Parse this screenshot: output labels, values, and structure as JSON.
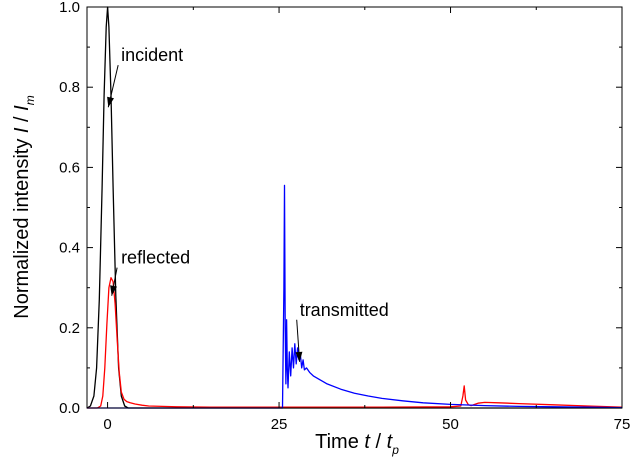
{
  "chart_data": {
    "type": "line",
    "xlabel": {
      "prefix": "Time ",
      "var": "t",
      "sep": " / ",
      "var2": "t",
      "sub": "p"
    },
    "ylabel": {
      "prefix": "Normalized intensity ",
      "var": "I",
      "sep": " / ",
      "var2": "I",
      "sub": "m"
    },
    "xlim": [
      -3,
      75
    ],
    "ylim": [
      0,
      1.0
    ],
    "xticks": [
      {
        "value": 0,
        "label": "0"
      },
      {
        "value": 25,
        "label": "25"
      },
      {
        "value": 50,
        "label": "50"
      },
      {
        "value": 75,
        "label": "75"
      }
    ],
    "yticks": [
      {
        "value": 0.0,
        "label": "0.0"
      },
      {
        "value": 0.2,
        "label": "0.2"
      },
      {
        "value": 0.4,
        "label": "0.4"
      },
      {
        "value": 0.6,
        "label": "0.6"
      },
      {
        "value": 0.8,
        "label": "0.8"
      },
      {
        "value": 1.0,
        "label": "1.0"
      }
    ],
    "grid": false,
    "legend": "none",
    "series": [
      {
        "color": "#000000",
        "x": [
          -3,
          -2.5,
          -2,
          -1.6,
          -1.2,
          -0.8,
          -0.5,
          -0.2,
          0,
          0.2,
          0.5,
          0.8,
          1.2,
          1.6,
          2,
          2.5,
          3,
          4,
          8,
          20,
          50,
          75
        ],
        "y": [
          0,
          0.005,
          0.03,
          0.1,
          0.27,
          0.55,
          0.78,
          0.95,
          1.0,
          0.95,
          0.78,
          0.55,
          0.28,
          0.1,
          0.03,
          0.005,
          0,
          0,
          0,
          0,
          0,
          0
        ]
      },
      {
        "color": "#ff0000",
        "x": [
          -3,
          -1.5,
          -1,
          -0.7,
          -0.4,
          -0.1,
          0.2,
          0.5,
          0.8,
          1.1,
          1.4,
          1.7,
          2,
          2.4,
          2.8,
          3.3,
          4,
          5,
          6,
          8,
          10,
          15,
          20,
          25,
          30,
          40,
          50,
          51.5,
          51.8,
          52,
          52.2,
          52.6,
          53,
          54,
          55,
          57,
          60,
          65,
          70,
          75
        ],
        "y": [
          0,
          0,
          0.005,
          0.03,
          0.1,
          0.21,
          0.3,
          0.325,
          0.315,
          0.26,
          0.17,
          0.09,
          0.04,
          0.022,
          0.016,
          0.013,
          0.01,
          0.007,
          0.005,
          0.004,
          0.003,
          0.002,
          0.002,
          0.002,
          0.002,
          0.002,
          0.003,
          0.005,
          0.03,
          0.055,
          0.02,
          0.008,
          0.006,
          0.012,
          0.014,
          0.013,
          0.011,
          0.008,
          0.005,
          0.002
        ]
      },
      {
        "color": "#0000ff",
        "x": [
          -3,
          25.5,
          25.7,
          25.8,
          25.9,
          26,
          26.1,
          26.2,
          26.3,
          26.5,
          26.7,
          26.9,
          27.1,
          27.3,
          27.5,
          27.7,
          27.9,
          28.1,
          28.3,
          28.5,
          28.7,
          29,
          29.5,
          30,
          31,
          32,
          34,
          36,
          38,
          40,
          43,
          46,
          50,
          55,
          60,
          65,
          70,
          75
        ],
        "y": [
          0,
          0,
          0.3,
          0.555,
          0.2,
          0.06,
          0.22,
          0.1,
          0.05,
          0.14,
          0.08,
          0.15,
          0.1,
          0.16,
          0.11,
          0.15,
          0.12,
          0.135,
          0.1,
          0.12,
          0.095,
          0.1,
          0.088,
          0.08,
          0.07,
          0.06,
          0.047,
          0.037,
          0.03,
          0.024,
          0.018,
          0.013,
          0.009,
          0.006,
          0.004,
          0.003,
          0.002,
          0.001
        ]
      }
    ],
    "annotations": [
      {
        "text": "incident",
        "x": 6.5,
        "y": 0.865,
        "arrow_to": [
          0.1,
          0.75
        ]
      },
      {
        "text": "reflected",
        "x": 7.0,
        "y": 0.36,
        "arrow_to": [
          0.6,
          0.28
        ]
      },
      {
        "text": "transmitted",
        "x": 34.5,
        "y": 0.23,
        "arrow_to": [
          28.0,
          0.115
        ]
      }
    ]
  }
}
